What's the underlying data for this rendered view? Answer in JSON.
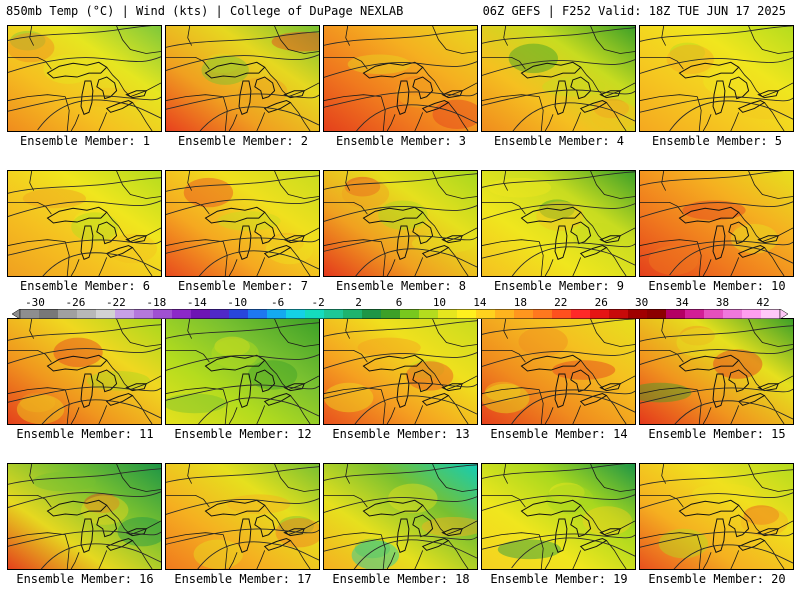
{
  "header": {
    "left": "850mb Temp (°C) | Wind (kts) | College of DuPage NEXLAB",
    "right": "06Z GEFS | F252 Valid: 18Z TUE JUN 17 2025"
  },
  "colorbar": {
    "labels": [
      "-30",
      "-26",
      "-22",
      "-18",
      "-14",
      "-10",
      "-6",
      "-2",
      "2",
      "6",
      "10",
      "14",
      "18",
      "22",
      "26",
      "30",
      "34",
      "38",
      "42"
    ],
    "colors": [
      "#8e8e8e",
      "#787878",
      "#a0a0a0",
      "#b8b8b8",
      "#d2d2d2",
      "#c8a0e6",
      "#b478dc",
      "#a050d2",
      "#8c28c8",
      "#6e14b4",
      "#5028c8",
      "#2846dc",
      "#1e78f0",
      "#14aaf0",
      "#14d2e6",
      "#14dcbe",
      "#1ec896",
      "#1eb46e",
      "#1e9646",
      "#3ca028",
      "#78c81e",
      "#b4dc1e",
      "#e6e61e",
      "#fff01e",
      "#ffd21e",
      "#ffb41e",
      "#ff961e",
      "#ff781e",
      "#ff501e",
      "#ff2828",
      "#e61414",
      "#c80a0a",
      "#a00000",
      "#8c0000",
      "#b40064",
      "#d21e96",
      "#e650be",
      "#f078dc",
      "#ff9ef0",
      "#ffc8f8"
    ]
  },
  "members": [
    {
      "label": "Ensemble Member: 1",
      "colors": [
        "#7ec83a",
        "#e6e620",
        "#f5c020",
        "#f08c1e"
      ]
    },
    {
      "label": "Ensemble Member: 2",
      "colors": [
        "#78c030",
        "#e6d820",
        "#f0a020",
        "#e8401e"
      ]
    },
    {
      "label": "Ensemble Member: 3",
      "colors": [
        "#e8d81e",
        "#f5b020",
        "#f07a1e",
        "#e4401c"
      ]
    },
    {
      "label": "Ensemble Member: 4",
      "colors": [
        "#3ca028",
        "#c8dc20",
        "#f5c020",
        "#f08c1e"
      ]
    },
    {
      "label": "Ensemble Member: 5",
      "colors": [
        "#b4dc1e",
        "#f0e61e",
        "#f5c820",
        "#f5a820"
      ]
    },
    {
      "label": "Ensemble Member: 6",
      "colors": [
        "#b4dc1e",
        "#f0e61e",
        "#f5c020",
        "#f0a020"
      ]
    },
    {
      "label": "Ensemble Member: 7",
      "colors": [
        "#c8dc1e",
        "#f0e01e",
        "#f5a820",
        "#e84a1e"
      ]
    },
    {
      "label": "Ensemble Member: 8",
      "colors": [
        "#a8d81e",
        "#e6e01e",
        "#f0a020",
        "#e4381c"
      ]
    },
    {
      "label": "Ensemble Member: 9",
      "colors": [
        "#3ca028",
        "#c8dc20",
        "#f0e61e",
        "#f5c020"
      ]
    },
    {
      "label": "Ensemble Member: 10",
      "colors": [
        "#e6e01e",
        "#f5b020",
        "#f07a1e",
        "#e4401c"
      ]
    },
    {
      "label": "Ensemble Member: 11",
      "colors": [
        "#a8d81e",
        "#f0d820",
        "#f0961e",
        "#e4401c"
      ]
    },
    {
      "label": "Ensemble Member: 12",
      "colors": [
        "#3ca028",
        "#78c030",
        "#b4dc1e",
        "#e6e01e"
      ]
    },
    {
      "label": "Ensemble Member: 13",
      "colors": [
        "#c8dc1e",
        "#f0e01e",
        "#f5a020",
        "#e8501e"
      ]
    },
    {
      "label": "Ensemble Member: 14",
      "colors": [
        "#e6e01e",
        "#f5c020",
        "#f08c1e",
        "#e4401c"
      ]
    },
    {
      "label": "Ensemble Member: 15",
      "colors": [
        "#3ca028",
        "#e6e01e",
        "#f0961e",
        "#e4381c"
      ]
    },
    {
      "label": "Ensemble Member: 16",
      "colors": [
        "#1e9646",
        "#78c030",
        "#e6d820",
        "#e4401c"
      ]
    },
    {
      "label": "Ensemble Member: 17",
      "colors": [
        "#78c030",
        "#e6e01e",
        "#f5b020",
        "#f07a1e"
      ]
    },
    {
      "label": "Ensemble Member: 18",
      "colors": [
        "#14cdb4",
        "#78c030",
        "#e6e01e",
        "#f5b020"
      ]
    },
    {
      "label": "Ensemble Member: 19",
      "colors": [
        "#1e9646",
        "#a8d81e",
        "#f0e61e",
        "#f5d020"
      ]
    },
    {
      "label": "Ensemble Member: 20",
      "colors": [
        "#b4dc1e",
        "#f0e01e",
        "#f5b020",
        "#e8501e"
      ]
    }
  ]
}
